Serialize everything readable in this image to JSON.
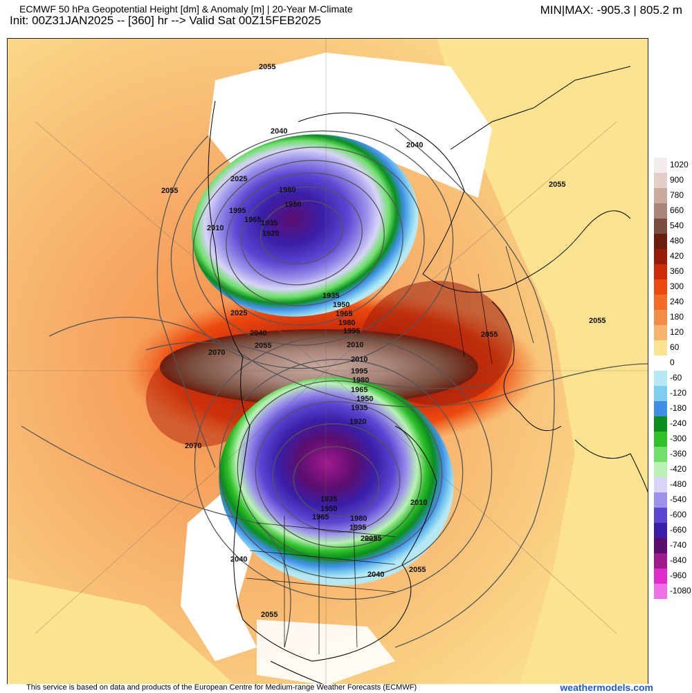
{
  "header": {
    "title": "ECMWF 50 hPa Geopotential Height [dm] & Anomaly [m] | 20-Year M-Climate",
    "init": "Init: 00Z31JAN2025 -- [360] hr --> Valid Sat 00Z15FEB2025",
    "minmax": "MIN|MAX: -905.3 | 805.2 m"
  },
  "legend": {
    "entries": [
      {
        "label": "1020",
        "color": "#f3ecea"
      },
      {
        "label": "900",
        "color": "#e3cfc8"
      },
      {
        "label": "780",
        "color": "#c9aa9e"
      },
      {
        "label": "660",
        "color": "#a8847a"
      },
      {
        "label": "540",
        "color": "#7a4f3f"
      },
      {
        "label": "480",
        "color": "#6b1d0e"
      },
      {
        "label": "420",
        "color": "#9a1a0a"
      },
      {
        "label": "360",
        "color": "#cc2a08"
      },
      {
        "label": "300",
        "color": "#ea4a0f"
      },
      {
        "label": "240",
        "color": "#f26b28"
      },
      {
        "label": "180",
        "color": "#f48c48"
      },
      {
        "label": "120",
        "color": "#f7b26c"
      },
      {
        "label": "60",
        "color": "#fbe38f"
      },
      {
        "label": "0",
        "color": "#ffffff"
      },
      {
        "label": "-60",
        "color": "#b4e8f3"
      },
      {
        "label": "-120",
        "color": "#7fcdef"
      },
      {
        "label": "-180",
        "color": "#3f8fe8"
      },
      {
        "label": "-240",
        "color": "#0b8e1c"
      },
      {
        "label": "-300",
        "color": "#2fc02a"
      },
      {
        "label": "-360",
        "color": "#6fe06a"
      },
      {
        "label": "-420",
        "color": "#b9f2b3"
      },
      {
        "label": "-480",
        "color": "#d7d4f7"
      },
      {
        "label": "-540",
        "color": "#9c92ea"
      },
      {
        "label": "-600",
        "color": "#5c46d2"
      },
      {
        "label": "-660",
        "color": "#3a1ea8"
      },
      {
        "label": "-740",
        "color": "#5c0e6e"
      },
      {
        "label": "-840",
        "color": "#a01a8c"
      },
      {
        "label": "-960",
        "color": "#e02cc8"
      },
      {
        "label": "-1080",
        "color": "#f06fe6"
      }
    ]
  },
  "contour_labels": [
    {
      "text": "2055"
    },
    {
      "text": "2040"
    },
    {
      "text": "2025"
    },
    {
      "text": "2055"
    },
    {
      "text": "1995"
    },
    {
      "text": "1980"
    },
    {
      "text": "1965"
    },
    {
      "text": "1950"
    },
    {
      "text": "1935"
    },
    {
      "text": "1920"
    },
    {
      "text": "2010"
    },
    {
      "text": "2040"
    },
    {
      "text": "2055"
    },
    {
      "text": "1935"
    },
    {
      "text": "1950"
    },
    {
      "text": "1965"
    },
    {
      "text": "1980"
    },
    {
      "text": "1995"
    },
    {
      "text": "2025"
    },
    {
      "text": "2040"
    },
    {
      "text": "2055"
    },
    {
      "text": "2070"
    },
    {
      "text": "2010"
    },
    {
      "text": "2010"
    },
    {
      "text": "1995"
    },
    {
      "text": "1980"
    },
    {
      "text": "1965"
    },
    {
      "text": "1950"
    },
    {
      "text": "1935"
    },
    {
      "text": "1920"
    },
    {
      "text": "2055"
    },
    {
      "text": "2055"
    },
    {
      "text": "2070"
    },
    {
      "text": "1935"
    },
    {
      "text": "1950"
    },
    {
      "text": "1965"
    },
    {
      "text": "1980"
    },
    {
      "text": "1995"
    },
    {
      "text": "2025"
    },
    {
      "text": "2025"
    },
    {
      "text": "2010"
    },
    {
      "text": "2040"
    },
    {
      "text": "2040"
    },
    {
      "text": "2055"
    },
    {
      "text": "2055"
    }
  ],
  "footer": {
    "credit": "This service is based on data and products of the European Centre for Medium-range Weather Forecasts (ECMWF)",
    "brand": "weathermodels.com"
  }
}
